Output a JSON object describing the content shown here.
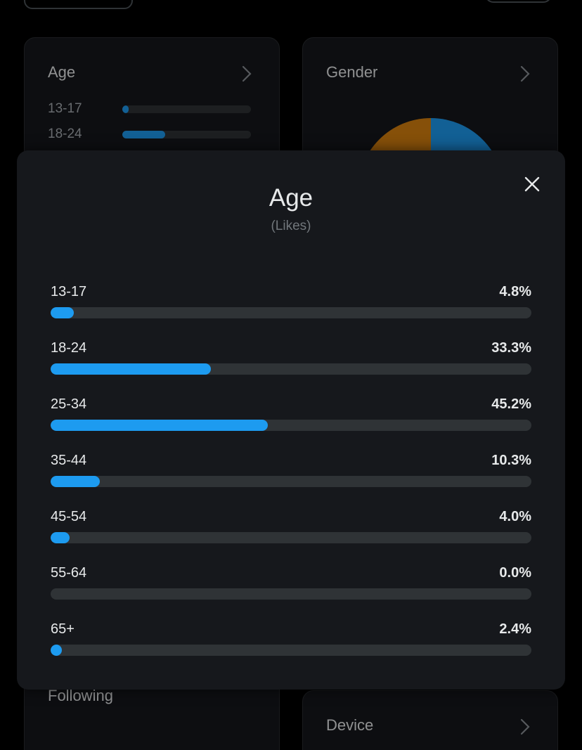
{
  "background": {
    "age_card": {
      "title": "Age",
      "rows": [
        {
          "label": "13-17",
          "percent": 4.8
        },
        {
          "label": "18-24",
          "percent": 33.3
        }
      ]
    },
    "gender_card": {
      "title": "Gender"
    },
    "following_card": {
      "title": "Following"
    },
    "device_card": {
      "title": "Device"
    }
  },
  "modal": {
    "title": "Age",
    "subtitle": "(Likes)",
    "close_icon": "close-icon",
    "rows": [
      {
        "label": "13-17",
        "value": "4.8%",
        "percent": 4.8
      },
      {
        "label": "18-24",
        "value": "33.3%",
        "percent": 33.3
      },
      {
        "label": "25-34",
        "value": "45.2%",
        "percent": 45.2
      },
      {
        "label": "35-44",
        "value": "10.3%",
        "percent": 10.3
      },
      {
        "label": "45-54",
        "value": "4.0%",
        "percent": 4.0
      },
      {
        "label": "55-64",
        "value": "0.0%",
        "percent": 0.0
      },
      {
        "label": "65+",
        "value": "2.4%",
        "percent": 2.4
      }
    ]
  },
  "colors": {
    "accent": "#1d9bf0",
    "track": "#2f3336",
    "pie_orange": "#d9820f",
    "pie_blue": "#1d9bf0"
  }
}
